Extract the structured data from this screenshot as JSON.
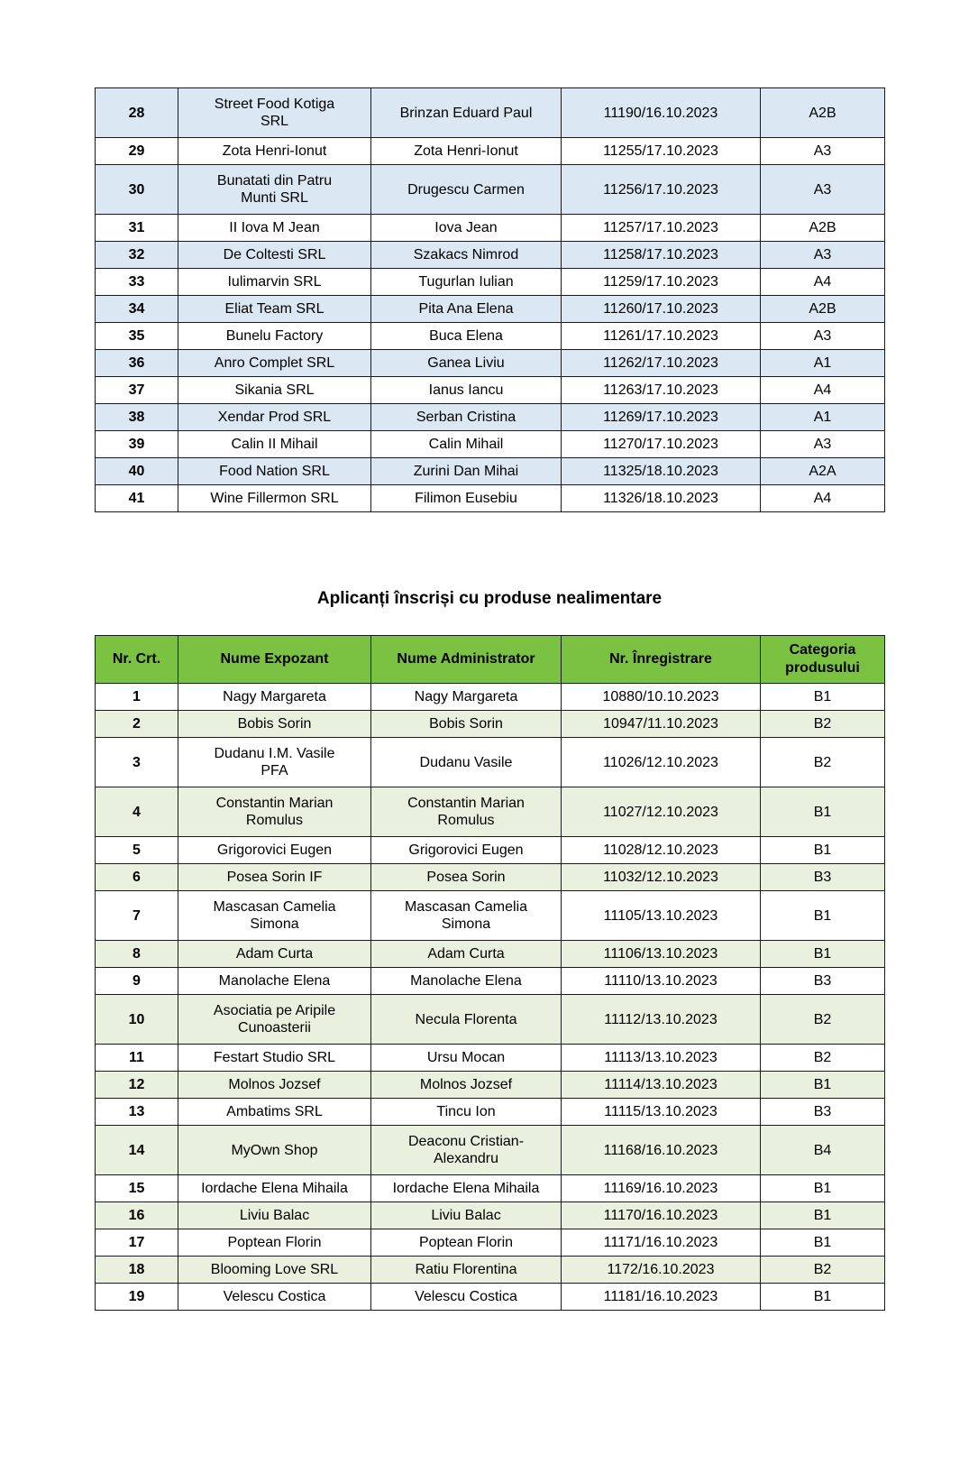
{
  "section_title": "Aplicanți înscriși cu produse nealimentare",
  "colors": {
    "food_row_shade": "#dbe7f3",
    "nonfood_row_shade": "#e9f0de",
    "nonfood_header_bg": "#7cc242",
    "border": "#1a1a1a",
    "text": "#000000"
  },
  "food_table": {
    "shade_parity": 0,
    "shade_color_key": "food_row_shade",
    "rows": [
      {
        "nr": "28",
        "expozant": "Street Food Kotiga\nSRL",
        "administrator": "Brinzan Eduard Paul",
        "inregistrare": "11190/16.10.2023",
        "categoria": "A2B"
      },
      {
        "nr": "29",
        "expozant": "Zota Henri-Ionut",
        "administrator": "Zota Henri-Ionut",
        "inregistrare": "11255/17.10.2023",
        "categoria": "A3"
      },
      {
        "nr": "30",
        "expozant": "Bunatati din Patru\nMunti SRL",
        "administrator": "Drugescu Carmen",
        "inregistrare": "11256/17.10.2023",
        "categoria": "A3"
      },
      {
        "nr": "31",
        "expozant": "II Iova M Jean",
        "administrator": "Iova Jean",
        "inregistrare": "11257/17.10.2023",
        "categoria": "A2B"
      },
      {
        "nr": "32",
        "expozant": "De Coltesti SRL",
        "administrator": "Szakacs Nimrod",
        "inregistrare": "11258/17.10.2023",
        "categoria": "A3"
      },
      {
        "nr": "33",
        "expozant": "Iulimarvin SRL",
        "administrator": "Tugurlan Iulian",
        "inregistrare": "11259/17.10.2023",
        "categoria": "A4"
      },
      {
        "nr": "34",
        "expozant": "Eliat Team SRL",
        "administrator": "Pita Ana Elena",
        "inregistrare": "11260/17.10.2023",
        "categoria": "A2B"
      },
      {
        "nr": "35",
        "expozant": "Bunelu Factory",
        "administrator": "Buca Elena",
        "inregistrare": "11261/17.10.2023",
        "categoria": "A3"
      },
      {
        "nr": "36",
        "expozant": "Anro Complet SRL",
        "administrator": "Ganea Liviu",
        "inregistrare": "11262/17.10.2023",
        "categoria": "A1"
      },
      {
        "nr": "37",
        "expozant": "Sikania SRL",
        "administrator": "Ianus Iancu",
        "inregistrare": "11263/17.10.2023",
        "categoria": "A4"
      },
      {
        "nr": "38",
        "expozant": "Xendar Prod SRL",
        "administrator": "Serban Cristina",
        "inregistrare": "11269/17.10.2023",
        "categoria": "A1"
      },
      {
        "nr": "39",
        "expozant": "Calin II Mihail",
        "administrator": "Calin Mihail",
        "inregistrare": "11270/17.10.2023",
        "categoria": "A3"
      },
      {
        "nr": "40",
        "expozant": "Food Nation SRL",
        "administrator": "Zurini Dan Mihai",
        "inregistrare": "11325/18.10.2023",
        "categoria": "A2A"
      },
      {
        "nr": "41",
        "expozant": "Wine Fillermon SRL",
        "administrator": "Filimon Eusebiu",
        "inregistrare": "11326/18.10.2023",
        "categoria": "A4"
      }
    ]
  },
  "nonfood_table": {
    "shade_parity": 1,
    "shade_color_key": "nonfood_row_shade",
    "header": {
      "nr": "Nr. Crt.",
      "expozant": "Nume Expozant",
      "administrator": "Nume Administrator",
      "inregistrare": "Nr. Înregistrare",
      "categoria": "Categoria produsului"
    },
    "rows": [
      {
        "nr": "1",
        "expozant": "Nagy Margareta",
        "administrator": "Nagy Margareta",
        "inregistrare": "10880/10.10.2023",
        "categoria": "B1"
      },
      {
        "nr": "2",
        "expozant": "Bobis Sorin",
        "administrator": "Bobis Sorin",
        "inregistrare": "10947/11.10.2023",
        "categoria": "B2"
      },
      {
        "nr": "3",
        "expozant": "Dudanu I.M. Vasile\nPFA",
        "administrator": "Dudanu Vasile",
        "inregistrare": "11026/12.10.2023",
        "categoria": "B2"
      },
      {
        "nr": "4",
        "expozant": "Constantin Marian\nRomulus",
        "administrator": "Constantin Marian\nRomulus",
        "inregistrare": "11027/12.10.2023",
        "categoria": "B1"
      },
      {
        "nr": "5",
        "expozant": "Grigorovici Eugen",
        "administrator": "Grigorovici Eugen",
        "inregistrare": "11028/12.10.2023",
        "categoria": "B1"
      },
      {
        "nr": "6",
        "expozant": "Posea Sorin IF",
        "administrator": "Posea Sorin",
        "inregistrare": "11032/12.10.2023",
        "categoria": "B3"
      },
      {
        "nr": "7",
        "expozant": "Mascasan Camelia\nSimona",
        "administrator": "Mascasan Camelia\nSimona",
        "inregistrare": "11105/13.10.2023",
        "categoria": "B1"
      },
      {
        "nr": "8",
        "expozant": "Adam Curta",
        "administrator": "Adam Curta",
        "inregistrare": "11106/13.10.2023",
        "categoria": "B1"
      },
      {
        "nr": "9",
        "expozant": "Manolache Elena",
        "administrator": "Manolache Elena",
        "inregistrare": "11110/13.10.2023",
        "categoria": "B3"
      },
      {
        "nr": "10",
        "expozant": "Asociatia pe Aripile\nCunoasterii",
        "administrator": "Necula Florenta",
        "inregistrare": "11112/13.10.2023",
        "categoria": "B2"
      },
      {
        "nr": "11",
        "expozant": "Festart Studio SRL",
        "administrator": "Ursu Mocan",
        "inregistrare": "11113/13.10.2023",
        "categoria": "B2"
      },
      {
        "nr": "12",
        "expozant": "Molnos Jozsef",
        "administrator": "Molnos Jozsef",
        "inregistrare": "11114/13.10.2023",
        "categoria": "B1"
      },
      {
        "nr": "13",
        "expozant": "Ambatims SRL",
        "administrator": "Tincu Ion",
        "inregistrare": "11115/13.10.2023",
        "categoria": "B3"
      },
      {
        "nr": "14",
        "expozant": "MyOwn Shop",
        "administrator": "Deaconu Cristian-\nAlexandru",
        "inregistrare": "11168/16.10.2023",
        "categoria": "B4"
      },
      {
        "nr": "15",
        "expozant": "Iordache Elena Mihaila",
        "administrator": "Iordache Elena Mihaila",
        "inregistrare": "11169/16.10.2023",
        "categoria": "B1"
      },
      {
        "nr": "16",
        "expozant": "Liviu Balac",
        "administrator": "Liviu Balac",
        "inregistrare": "11170/16.10.2023",
        "categoria": "B1"
      },
      {
        "nr": "17",
        "expozant": "Poptean Florin",
        "administrator": "Poptean Florin",
        "inregistrare": "11171/16.10.2023",
        "categoria": "B1"
      },
      {
        "nr": "18",
        "expozant": "Blooming Love SRL",
        "administrator": "Ratiu Florentina",
        "inregistrare": "1172/16.10.2023",
        "categoria": "B2"
      },
      {
        "nr": "19",
        "expozant": "Velescu Costica",
        "administrator": "Velescu Costica",
        "inregistrare": "11181/16.10.2023",
        "categoria": "B1"
      }
    ]
  }
}
